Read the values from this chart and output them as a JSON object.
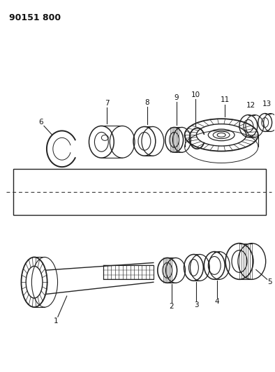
{
  "title": "90151 800",
  "title_fontsize": 9,
  "bg_color": "#ffffff",
  "line_color": "#222222",
  "label_fontsize": 7.5,
  "fig_width": 3.94,
  "fig_height": 5.33,
  "dpi": 100
}
